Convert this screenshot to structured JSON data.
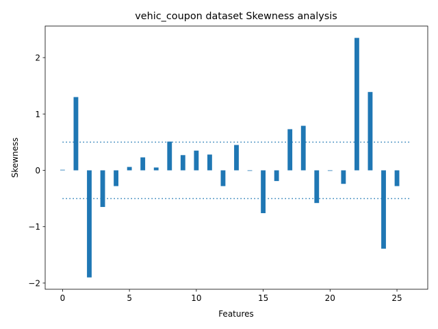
{
  "chart_data": {
    "type": "bar",
    "title": "vehic_coupon dataset Skewness analysis",
    "xlabel": "Features",
    "ylabel": "Skewness",
    "x": [
      0,
      1,
      2,
      3,
      4,
      5,
      6,
      7,
      8,
      9,
      10,
      11,
      12,
      13,
      14,
      15,
      16,
      17,
      18,
      19,
      20,
      21,
      22,
      23,
      24,
      25
    ],
    "values": [
      0.01,
      1.3,
      -1.9,
      -0.65,
      -0.28,
      0.06,
      0.23,
      0.05,
      0.51,
      0.27,
      0.35,
      0.28,
      -0.28,
      0.45,
      0.0,
      -0.76,
      -0.19,
      0.73,
      0.79,
      -0.58,
      0.0,
      -0.24,
      2.35,
      1.39,
      -1.39,
      -0.28
    ],
    "xlim": [
      -1.3,
      27.3
    ],
    "ylim": [
      -2.11,
      2.56
    ],
    "xticks": [
      0,
      5,
      10,
      15,
      20,
      25
    ],
    "xtick_labels": [
      "0",
      "5",
      "10",
      "15",
      "20",
      "25"
    ],
    "yticks": [
      -2,
      -1,
      0,
      1,
      2
    ],
    "ytick_labels": [
      "−2",
      "−1",
      "0",
      "1",
      "2"
    ],
    "reference_lines": [
      {
        "y": 0.5,
        "x_from": 0,
        "x_to": 26,
        "style": "dotted"
      },
      {
        "y": -0.5,
        "x_from": 0,
        "x_to": 26,
        "style": "dotted"
      }
    ],
    "bar_color": "#1f77b4",
    "grid": false,
    "legend": "none"
  }
}
